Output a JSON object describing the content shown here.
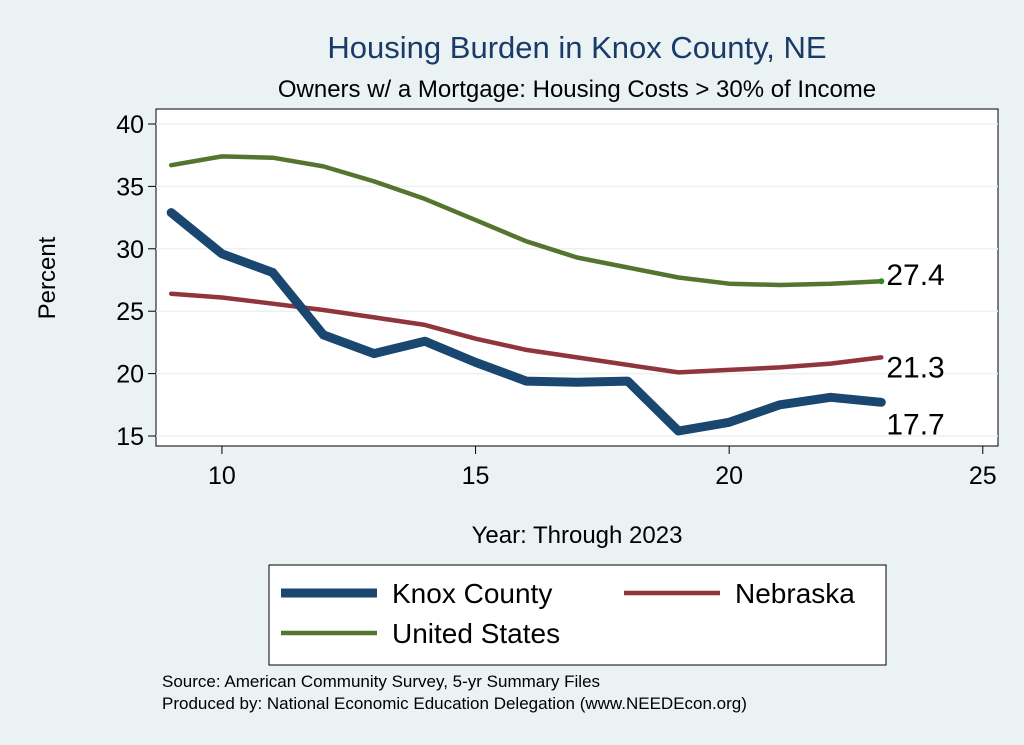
{
  "chart_data": {
    "type": "line",
    "title": "Housing Burden in Knox County, NE",
    "subtitle": "Owners w/ a Mortgage: Housing Costs > 30% of Income",
    "xlabel": "Year: Through 2023",
    "ylabel": "Percent",
    "xlim": [
      8.7,
      25.3
    ],
    "ylim": [
      14.2,
      41.2
    ],
    "xticks": [
      10,
      15,
      20,
      25
    ],
    "yticks": [
      15,
      20,
      25,
      30,
      35,
      40
    ],
    "grid": true,
    "legend_position": "bottom",
    "x": [
      9,
      10,
      11,
      12,
      13,
      14,
      15,
      16,
      17,
      18,
      19,
      20,
      21,
      22,
      23
    ],
    "series": [
      {
        "name": "Knox County",
        "color": "#1a476f",
        "width": "thick",
        "values": [
          32.9,
          29.6,
          28.1,
          23.1,
          21.6,
          22.6,
          20.9,
          19.4,
          19.3,
          19.4,
          15.4,
          16.1,
          17.5,
          18.1,
          17.7
        ],
        "end_label": "17.7"
      },
      {
        "name": "Nebraska",
        "color": "#90353b",
        "width": "medium",
        "values": [
          26.4,
          26.1,
          25.6,
          25.1,
          24.5,
          23.9,
          22.8,
          21.9,
          21.3,
          20.7,
          20.1,
          20.3,
          20.5,
          20.8,
          21.3
        ],
        "end_label": "21.3"
      },
      {
        "name": "United States",
        "color": "#55752f",
        "width": "medium",
        "values": [
          36.7,
          37.4,
          37.3,
          36.6,
          35.4,
          34.0,
          32.3,
          30.6,
          29.3,
          28.5,
          27.7,
          27.2,
          27.1,
          27.2,
          27.4
        ],
        "end_label": "27.4"
      }
    ],
    "source_lines": [
      "Source: American Community Survey, 5-yr Summary Files",
      "Produced by: National Economic Education Delegation (www.NEEDEcon.org)"
    ]
  }
}
